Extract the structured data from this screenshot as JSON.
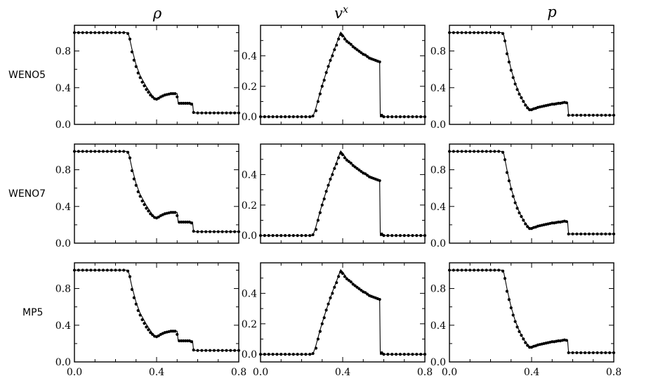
{
  "figure": {
    "columns": [
      {
        "key": "rho",
        "title": "ρ",
        "title_sup": ""
      },
      {
        "key": "vx",
        "title": "v",
        "title_sup": "x"
      },
      {
        "key": "p",
        "title": "p",
        "title_sup": ""
      }
    ],
    "rows": [
      {
        "label": "WENO5"
      },
      {
        "label": "WENO7"
      },
      {
        "label": "MP5"
      }
    ],
    "x_tick_labels": [
      "0.0",
      "0.4",
      "0.8"
    ],
    "y_tick_labels": {
      "rho": [
        "0.0",
        "0.4",
        "0.8"
      ],
      "vx": [
        "0.0",
        "0.2",
        "0.4"
      ],
      "p": [
        "0.0",
        "0.4",
        "0.8"
      ]
    }
  },
  "chart_data": [
    {
      "row": "WENO5",
      "column": "rho",
      "type": "line",
      "xlim": [
        0,
        0.8
      ],
      "ylim": [
        0,
        1.08
      ],
      "xticks": [
        0,
        0.4,
        0.8
      ],
      "yticks": [
        0,
        0.4,
        0.8
      ],
      "reference": "exact (solid line)",
      "numeric": "points (dots)"
    },
    {
      "row": "WENO5",
      "column": "vx",
      "type": "line",
      "xlim": [
        0,
        0.8
      ],
      "ylim": [
        -0.05,
        0.6
      ],
      "xticks": [
        0,
        0.4,
        0.8
      ],
      "yticks": [
        0,
        0.2,
        0.4
      ],
      "reference": "exact (solid line)",
      "numeric": "points (dots)"
    },
    {
      "row": "WENO5",
      "column": "p",
      "type": "line",
      "xlim": [
        0,
        0.8
      ],
      "ylim": [
        0,
        1.08
      ],
      "xticks": [
        0,
        0.4,
        0.8
      ],
      "yticks": [
        0,
        0.4,
        0.8
      ],
      "reference": "exact (solid line)",
      "numeric": "points (dots)"
    },
    {
      "row": "WENO7",
      "column": "rho",
      "type": "line",
      "xlim": [
        0,
        0.8
      ],
      "ylim": [
        0,
        1.08
      ],
      "xticks": [
        0,
        0.4,
        0.8
      ],
      "yticks": [
        0,
        0.4,
        0.8
      ]
    },
    {
      "row": "WENO7",
      "column": "vx",
      "type": "line",
      "xlim": [
        0,
        0.8
      ],
      "ylim": [
        -0.05,
        0.6
      ],
      "xticks": [
        0,
        0.4,
        0.8
      ],
      "yticks": [
        0,
        0.2,
        0.4
      ]
    },
    {
      "row": "WENO7",
      "column": "p",
      "type": "line",
      "xlim": [
        0,
        0.8
      ],
      "ylim": [
        0,
        1.08
      ],
      "xticks": [
        0,
        0.4,
        0.8
      ],
      "yticks": [
        0,
        0.4,
        0.8
      ]
    },
    {
      "row": "MP5",
      "column": "rho",
      "type": "line",
      "xlim": [
        0,
        0.8
      ],
      "ylim": [
        0,
        1.08
      ],
      "xticks": [
        0,
        0.4,
        0.8
      ],
      "yticks": [
        0,
        0.4,
        0.8
      ]
    },
    {
      "row": "MP5",
      "column": "vx",
      "type": "line",
      "xlim": [
        0,
        0.8
      ],
      "ylim": [
        -0.05,
        0.6
      ],
      "xticks": [
        0,
        0.4,
        0.8
      ],
      "yticks": [
        0,
        0.2,
        0.4
      ]
    },
    {
      "row": "MP5",
      "column": "p",
      "type": "line",
      "xlim": [
        0,
        0.8
      ],
      "ylim": [
        0,
        1.08
      ],
      "xticks": [
        0,
        0.4,
        0.8
      ],
      "yticks": [
        0,
        0.4,
        0.8
      ]
    }
  ],
  "curves": {
    "rho": {
      "exact": [
        [
          0,
          1.0
        ],
        [
          0.255,
          1.0
        ],
        [
          0.265,
          0.97
        ],
        [
          0.28,
          0.82
        ],
        [
          0.3,
          0.65
        ],
        [
          0.32,
          0.53
        ],
        [
          0.35,
          0.41
        ],
        [
          0.38,
          0.31
        ],
        [
          0.395,
          0.275
        ],
        [
          0.41,
          0.285
        ],
        [
          0.43,
          0.31
        ],
        [
          0.45,
          0.325
        ],
        [
          0.47,
          0.335
        ],
        [
          0.49,
          0.335
        ],
        [
          0.5,
          0.335
        ],
        [
          0.505,
          0.23
        ],
        [
          0.575,
          0.23
        ],
        [
          0.58,
          0.125
        ],
        [
          0.8,
          0.125
        ]
      ],
      "points": [
        [
          0.0,
          1.0
        ],
        [
          0.02,
          1.0
        ],
        [
          0.04,
          1.0
        ],
        [
          0.06,
          1.0
        ],
        [
          0.08,
          1.0
        ],
        [
          0.1,
          1.0
        ],
        [
          0.12,
          1.0
        ],
        [
          0.14,
          1.0
        ],
        [
          0.16,
          1.0
        ],
        [
          0.18,
          1.0
        ],
        [
          0.2,
          1.0
        ],
        [
          0.22,
          1.0
        ],
        [
          0.24,
          1.0
        ],
        [
          0.26,
          0.99
        ],
        [
          0.27,
          0.93
        ],
        [
          0.28,
          0.79
        ],
        [
          0.29,
          0.7
        ],
        [
          0.3,
          0.63
        ],
        [
          0.31,
          0.56
        ],
        [
          0.32,
          0.51
        ],
        [
          0.33,
          0.46
        ],
        [
          0.34,
          0.42
        ],
        [
          0.35,
          0.38
        ],
        [
          0.36,
          0.35
        ],
        [
          0.37,
          0.32
        ],
        [
          0.38,
          0.3
        ],
        [
          0.39,
          0.28
        ],
        [
          0.4,
          0.275
        ],
        [
          0.41,
          0.285
        ],
        [
          0.42,
          0.3
        ],
        [
          0.43,
          0.31
        ],
        [
          0.44,
          0.32
        ],
        [
          0.45,
          0.325
        ],
        [
          0.46,
          0.33
        ],
        [
          0.47,
          0.335
        ],
        [
          0.48,
          0.335
        ],
        [
          0.49,
          0.335
        ],
        [
          0.5,
          0.3
        ],
        [
          0.51,
          0.23
        ],
        [
          0.52,
          0.23
        ],
        [
          0.53,
          0.23
        ],
        [
          0.54,
          0.23
        ],
        [
          0.55,
          0.23
        ],
        [
          0.56,
          0.23
        ],
        [
          0.57,
          0.22
        ],
        [
          0.58,
          0.13
        ],
        [
          0.6,
          0.125
        ],
        [
          0.62,
          0.125
        ],
        [
          0.64,
          0.125
        ],
        [
          0.66,
          0.125
        ],
        [
          0.68,
          0.125
        ],
        [
          0.7,
          0.125
        ],
        [
          0.72,
          0.125
        ],
        [
          0.74,
          0.125
        ],
        [
          0.76,
          0.125
        ],
        [
          0.78,
          0.125
        ],
        [
          0.8,
          0.125
        ]
      ]
    },
    "vx": {
      "exact": [
        [
          0,
          0.0
        ],
        [
          0.255,
          0.0
        ],
        [
          0.27,
          0.06
        ],
        [
          0.29,
          0.16
        ],
        [
          0.31,
          0.25
        ],
        [
          0.33,
          0.33
        ],
        [
          0.35,
          0.41
        ],
        [
          0.37,
          0.48
        ],
        [
          0.39,
          0.555
        ],
        [
          0.4,
          0.54
        ],
        [
          0.42,
          0.5
        ],
        [
          0.45,
          0.465
        ],
        [
          0.48,
          0.43
        ],
        [
          0.51,
          0.405
        ],
        [
          0.54,
          0.38
        ],
        [
          0.57,
          0.365
        ],
        [
          0.58,
          0.355
        ],
        [
          0.583,
          0.0
        ],
        [
          0.8,
          0.0
        ]
      ],
      "points": [
        [
          0.0,
          0.0
        ],
        [
          0.02,
          0.0
        ],
        [
          0.04,
          0.0
        ],
        [
          0.06,
          0.0
        ],
        [
          0.08,
          0.0
        ],
        [
          0.1,
          0.0
        ],
        [
          0.12,
          0.0
        ],
        [
          0.14,
          0.0
        ],
        [
          0.16,
          0.0
        ],
        [
          0.18,
          0.0
        ],
        [
          0.2,
          0.0
        ],
        [
          0.22,
          0.0
        ],
        [
          0.24,
          0.0
        ],
        [
          0.255,
          0.005
        ],
        [
          0.27,
          0.04
        ],
        [
          0.28,
          0.1
        ],
        [
          0.29,
          0.15
        ],
        [
          0.3,
          0.2
        ],
        [
          0.31,
          0.24
        ],
        [
          0.32,
          0.29
        ],
        [
          0.33,
          0.33
        ],
        [
          0.34,
          0.37
        ],
        [
          0.35,
          0.4
        ],
        [
          0.36,
          0.44
        ],
        [
          0.37,
          0.47
        ],
        [
          0.38,
          0.51
        ],
        [
          0.39,
          0.54
        ],
        [
          0.4,
          0.53
        ],
        [
          0.41,
          0.51
        ],
        [
          0.42,
          0.495
        ],
        [
          0.43,
          0.485
        ],
        [
          0.44,
          0.475
        ],
        [
          0.45,
          0.46
        ],
        [
          0.46,
          0.45
        ],
        [
          0.47,
          0.44
        ],
        [
          0.48,
          0.43
        ],
        [
          0.49,
          0.42
        ],
        [
          0.5,
          0.41
        ],
        [
          0.51,
          0.405
        ],
        [
          0.52,
          0.395
        ],
        [
          0.53,
          0.385
        ],
        [
          0.54,
          0.38
        ],
        [
          0.55,
          0.375
        ],
        [
          0.56,
          0.37
        ],
        [
          0.57,
          0.365
        ],
        [
          0.58,
          0.36
        ],
        [
          0.59,
          0.01
        ],
        [
          0.6,
          0.0
        ],
        [
          0.62,
          0.0
        ],
        [
          0.64,
          0.0
        ],
        [
          0.66,
          0.0
        ],
        [
          0.68,
          0.0
        ],
        [
          0.7,
          0.0
        ],
        [
          0.72,
          0.0
        ],
        [
          0.74,
          0.0
        ],
        [
          0.76,
          0.0
        ],
        [
          0.78,
          0.0
        ],
        [
          0.8,
          0.0
        ]
      ]
    },
    "p": {
      "exact": [
        [
          0,
          1.0
        ],
        [
          0.255,
          1.0
        ],
        [
          0.265,
          0.97
        ],
        [
          0.28,
          0.8
        ],
        [
          0.3,
          0.6
        ],
        [
          0.32,
          0.45
        ],
        [
          0.34,
          0.34
        ],
        [
          0.36,
          0.25
        ],
        [
          0.38,
          0.19
        ],
        [
          0.395,
          0.155
        ],
        [
          0.41,
          0.165
        ],
        [
          0.44,
          0.19
        ],
        [
          0.47,
          0.205
        ],
        [
          0.5,
          0.215
        ],
        [
          0.53,
          0.225
        ],
        [
          0.56,
          0.235
        ],
        [
          0.575,
          0.24
        ],
        [
          0.58,
          0.1
        ],
        [
          0.8,
          0.1
        ]
      ],
      "points": [
        [
          0.0,
          1.0
        ],
        [
          0.02,
          1.0
        ],
        [
          0.04,
          1.0
        ],
        [
          0.06,
          1.0
        ],
        [
          0.08,
          1.0
        ],
        [
          0.1,
          1.0
        ],
        [
          0.12,
          1.0
        ],
        [
          0.14,
          1.0
        ],
        [
          0.16,
          1.0
        ],
        [
          0.18,
          1.0
        ],
        [
          0.2,
          1.0
        ],
        [
          0.22,
          1.0
        ],
        [
          0.24,
          1.0
        ],
        [
          0.26,
          0.99
        ],
        [
          0.27,
          0.91
        ],
        [
          0.28,
          0.77
        ],
        [
          0.29,
          0.68
        ],
        [
          0.3,
          0.59
        ],
        [
          0.31,
          0.51
        ],
        [
          0.32,
          0.44
        ],
        [
          0.33,
          0.38
        ],
        [
          0.34,
          0.33
        ],
        [
          0.35,
          0.29
        ],
        [
          0.36,
          0.25
        ],
        [
          0.37,
          0.21
        ],
        [
          0.38,
          0.18
        ],
        [
          0.39,
          0.16
        ],
        [
          0.4,
          0.16
        ],
        [
          0.41,
          0.17
        ],
        [
          0.42,
          0.175
        ],
        [
          0.43,
          0.185
        ],
        [
          0.44,
          0.19
        ],
        [
          0.45,
          0.195
        ],
        [
          0.46,
          0.2
        ],
        [
          0.47,
          0.205
        ],
        [
          0.48,
          0.21
        ],
        [
          0.49,
          0.215
        ],
        [
          0.5,
          0.22
        ],
        [
          0.51,
          0.22
        ],
        [
          0.52,
          0.225
        ],
        [
          0.53,
          0.23
        ],
        [
          0.54,
          0.23
        ],
        [
          0.55,
          0.235
        ],
        [
          0.56,
          0.24
        ],
        [
          0.57,
          0.235
        ],
        [
          0.58,
          0.1
        ],
        [
          0.6,
          0.1
        ],
        [
          0.62,
          0.1
        ],
        [
          0.64,
          0.1
        ],
        [
          0.66,
          0.1
        ],
        [
          0.68,
          0.1
        ],
        [
          0.7,
          0.1
        ],
        [
          0.72,
          0.1
        ],
        [
          0.74,
          0.1
        ],
        [
          0.76,
          0.1
        ],
        [
          0.78,
          0.1
        ],
        [
          0.8,
          0.1
        ]
      ]
    }
  }
}
